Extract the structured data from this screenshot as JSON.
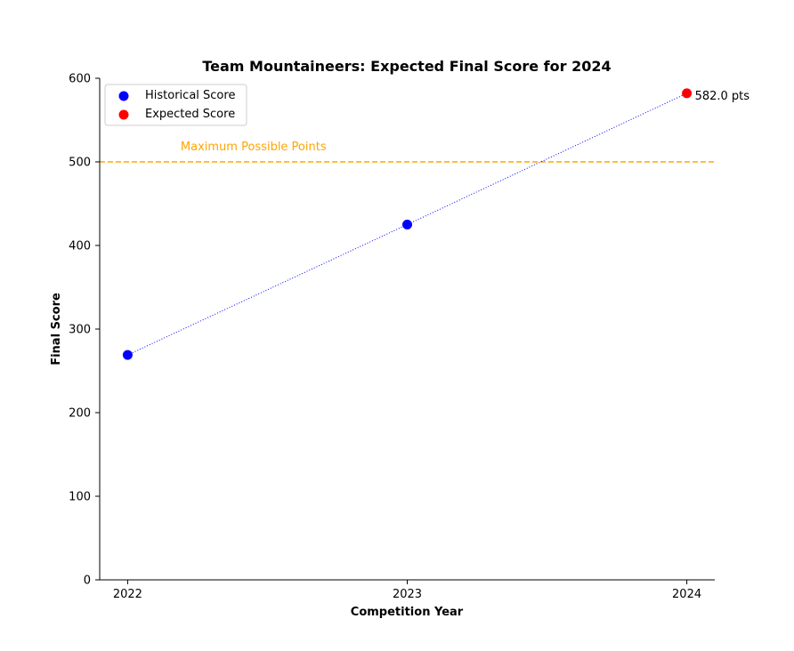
{
  "chart_data": {
    "type": "scatter",
    "title": "Team Mountaineers: Expected Final Score for 2024",
    "xlabel": "Competition Year",
    "ylabel": "Final Score",
    "xlim": [
      2021.9,
      2024.1
    ],
    "ylim": [
      0,
      600
    ],
    "x_ticks": [
      2022,
      2023,
      2024
    ],
    "y_ticks": [
      0,
      100,
      200,
      300,
      400,
      500,
      600
    ],
    "grid": false,
    "legend_position": "top-left",
    "series": [
      {
        "name": "Historical Score",
        "color": "#0000ff",
        "points": [
          {
            "x": 2022,
            "y": 269
          },
          {
            "x": 2023,
            "y": 425
          }
        ]
      },
      {
        "name": "Expected Score",
        "color": "#ff0000",
        "points": [
          {
            "x": 2024,
            "y": 582
          }
        ]
      }
    ],
    "trend_line": {
      "style": "dotted",
      "color": "#0000ff",
      "points": [
        {
          "x": 2022,
          "y": 269
        },
        {
          "x": 2023,
          "y": 425
        },
        {
          "x": 2024,
          "y": 582
        }
      ]
    },
    "reference_line": {
      "y": 500,
      "label": "Maximum Possible Points",
      "color": "#ffa500",
      "style": "dashed"
    },
    "annotation": {
      "text": "582.0 pts",
      "x": 2024,
      "y": 582
    }
  }
}
